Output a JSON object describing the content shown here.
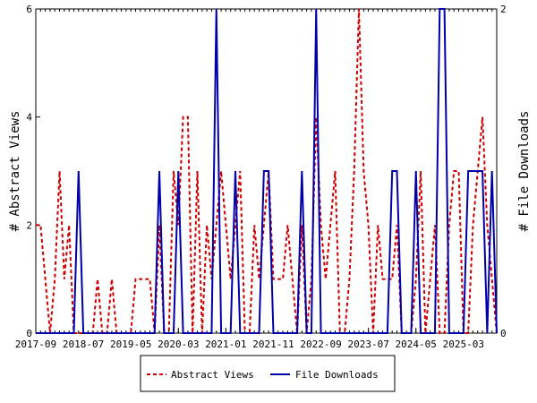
{
  "chart_data": {
    "type": "line",
    "title": "",
    "xlabel": "",
    "x_tick_labels": [
      "2017-09",
      "2018-07",
      "2019-05",
      "2020-03",
      "2021-01",
      "2021-11",
      "2022-09",
      "2023-07",
      "2024-05",
      "2025-03"
    ],
    "x_count": 98,
    "y_left": {
      "label": "# Abstract Views",
      "ticks": [
        "0",
        "2",
        "4",
        "6"
      ],
      "range": [
        0,
        6
      ]
    },
    "y_right": {
      "label": "# File Downloads",
      "ticks": [
        "0",
        "2"
      ],
      "range": [
        0,
        2
      ]
    },
    "grid": false,
    "legend": {
      "placement": "bottom"
    },
    "series": [
      {
        "name": "Abstract Views",
        "axis": "left",
        "color": "#cc0000",
        "dash": true,
        "values": [
          2,
          2,
          1,
          0,
          1,
          3,
          1,
          2,
          0,
          0,
          0,
          0,
          0,
          1,
          0,
          0,
          1,
          0,
          0,
          0,
          0,
          1,
          1,
          1,
          1,
          0,
          2,
          0,
          0,
          3,
          2,
          4,
          4,
          0,
          3,
          0,
          2,
          1,
          2,
          3,
          2,
          1,
          2,
          3,
          0,
          0,
          2,
          1,
          2,
          3,
          1,
          1,
          1,
          2,
          1,
          0,
          2,
          0,
          1,
          4,
          2,
          1,
          2,
          3,
          0,
          0,
          1,
          3,
          6,
          3,
          2,
          0,
          2,
          1,
          1,
          1,
          2,
          0,
          0,
          0,
          1,
          3,
          0,
          1,
          2,
          0,
          0,
          2,
          3,
          3,
          0,
          0,
          2,
          3,
          4,
          2,
          1,
          0
        ]
      },
      {
        "name": "File Downloads",
        "axis": "right",
        "color": "#0000aa",
        "dash": false,
        "values": [
          0,
          0,
          0,
          0,
          0,
          0,
          0,
          0,
          0,
          1,
          0,
          0,
          0,
          0,
          0,
          0,
          0,
          0,
          0,
          0,
          0,
          0,
          0,
          0,
          0,
          0,
          1,
          0,
          0,
          0,
          1,
          0,
          0,
          0,
          0,
          0,
          0,
          0,
          2,
          0,
          0,
          0,
          1,
          0,
          0,
          0,
          0,
          0,
          1,
          1,
          0,
          0,
          0,
          0,
          0,
          0,
          1,
          0,
          0,
          2,
          0,
          0,
          0,
          0,
          0,
          0,
          0,
          0,
          0,
          0,
          0,
          0,
          0,
          0,
          0,
          1,
          1,
          0,
          0,
          0,
          1,
          0,
          0,
          0,
          0,
          2,
          2,
          0,
          0,
          0,
          0,
          1,
          1,
          1,
          1,
          0,
          1,
          0
        ]
      }
    ]
  }
}
